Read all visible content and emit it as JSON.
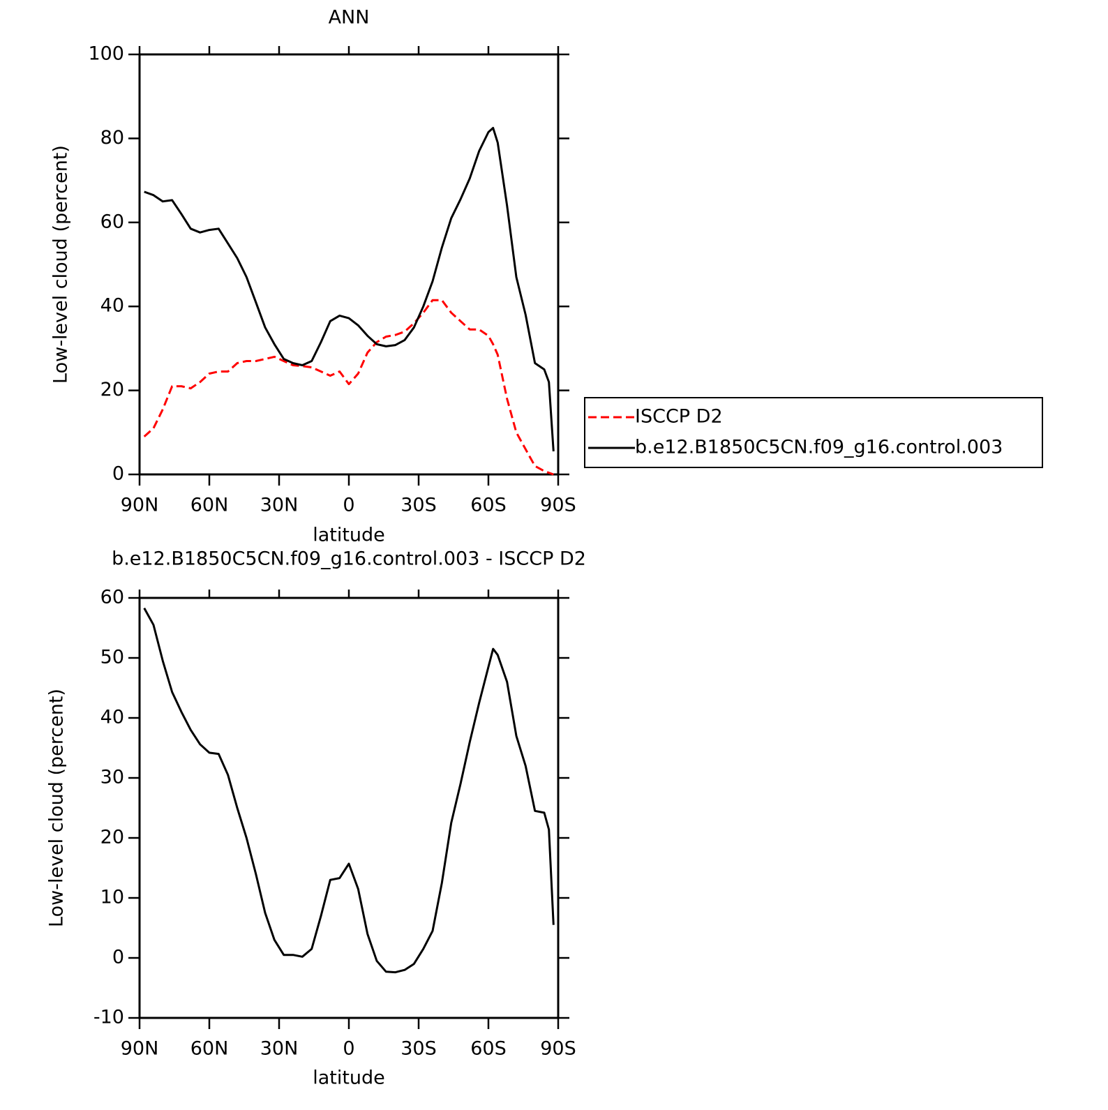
{
  "chart_data": [
    {
      "type": "line",
      "title": "ANN",
      "xlabel": "latitude",
      "ylabel": "Low-level cloud (percent)",
      "x": [
        88,
        84,
        80,
        76,
        72,
        68,
        64,
        60,
        56,
        52,
        48,
        44,
        40,
        36,
        32,
        28,
        24,
        20,
        16,
        12,
        8,
        4,
        0,
        -4,
        -8,
        -12,
        -16,
        -20,
        -24,
        -28,
        -32,
        -36,
        -40,
        -44,
        -48,
        -52,
        -56,
        -60,
        -62,
        -64,
        -68,
        -72,
        -76,
        -80,
        -84,
        -86,
        -88
      ],
      "series": [
        {
          "name": "ISCCP D2",
          "color": "#ff0000",
          "dash": true,
          "values": [
            9,
            11,
            15.5,
            21,
            21,
            20.5,
            22,
            24,
            24.5,
            24.5,
            26.5,
            27,
            27,
            27.5,
            28,
            27,
            26,
            25.8,
            25.5,
            24.5,
            23.5,
            24.5,
            21.5,
            24,
            29,
            31.5,
            32.8,
            33.2,
            34,
            36,
            38.5,
            41.5,
            41.5,
            38.5,
            36.5,
            34.5,
            34.5,
            33,
            31,
            28.5,
            18,
            10,
            6,
            2,
            0.8,
            0.4,
            0
          ]
        },
        {
          "name": "b.e12.B1850C5CN.f09_g16.control.003",
          "color": "#000000",
          "dash": false,
          "values": [
            67.3,
            66.5,
            65,
            65.3,
            62,
            58.5,
            57.6,
            58.2,
            58.5,
            55,
            51.5,
            47,
            41,
            35,
            31,
            27.5,
            26.5,
            26,
            27,
            31.5,
            36.5,
            37.8,
            37.2,
            35.5,
            33,
            31,
            30.5,
            30.8,
            32,
            35,
            40,
            46,
            54,
            61,
            65.5,
            70.5,
            77,
            81.5,
            82.5,
            79,
            64,
            47,
            38,
            26.5,
            25,
            22,
            5.5
          ]
        }
      ],
      "xlim": [
        90,
        -90
      ],
      "xticks": [
        {
          "value": 90,
          "label": "90N"
        },
        {
          "value": 60,
          "label": "60N"
        },
        {
          "value": 30,
          "label": "30N"
        },
        0,
        {
          "value": -30,
          "label": "30S"
        },
        {
          "value": -60,
          "label": "60S"
        },
        {
          "value": -90,
          "label": "90S"
        }
      ],
      "ylim": [
        0,
        100
      ],
      "yticks": [
        0,
        20,
        40,
        60,
        80,
        100
      ],
      "legend": "right"
    },
    {
      "type": "line",
      "title": "b.e12.B1850C5CN.f09_g16.control.003 - ISCCP D2",
      "xlabel": "latitude",
      "ylabel": "Low-level cloud (percent)",
      "x": [
        88,
        84,
        80,
        76,
        72,
        68,
        64,
        60,
        56,
        52,
        48,
        44,
        40,
        36,
        32,
        28,
        24,
        20,
        16,
        12,
        8,
        4,
        0,
        -4,
        -8,
        -12,
        -16,
        -20,
        -24,
        -28,
        -32,
        -36,
        -40,
        -44,
        -48,
        -52,
        -56,
        -60,
        -62,
        -64,
        -68,
        -72,
        -76,
        -80,
        -84,
        -86,
        -88
      ],
      "series": [
        {
          "color": "#000000",
          "dash": false,
          "values": [
            58.3,
            55.5,
            49.5,
            44.3,
            41,
            38,
            35.6,
            34.2,
            34,
            30.5,
            25,
            20,
            14,
            7.5,
            3,
            0.5,
            0.5,
            0.2,
            1.5,
            7,
            13,
            13.3,
            15.7,
            11.5,
            4,
            -0.5,
            -2.3,
            -2.4,
            -2,
            -1,
            1.5,
            4.5,
            12.5,
            22.5,
            29,
            36,
            42.5,
            48.5,
            51.5,
            50.5,
            46,
            37,
            32,
            24.5,
            24.2,
            21.4,
            5.5
          ]
        }
      ],
      "xlim": [
        90,
        -90
      ],
      "xticks": [
        {
          "value": 90,
          "label": "90N"
        },
        {
          "value": 60,
          "label": "60N"
        },
        {
          "value": 30,
          "label": "30N"
        },
        0,
        {
          "value": -30,
          "label": "30S"
        },
        {
          "value": -60,
          "label": "60S"
        },
        {
          "value": -90,
          "label": "90S"
        }
      ],
      "ylim": [
        -10,
        60
      ],
      "yticks": [
        -10,
        0,
        10,
        20,
        30,
        40,
        50,
        60
      ]
    }
  ]
}
